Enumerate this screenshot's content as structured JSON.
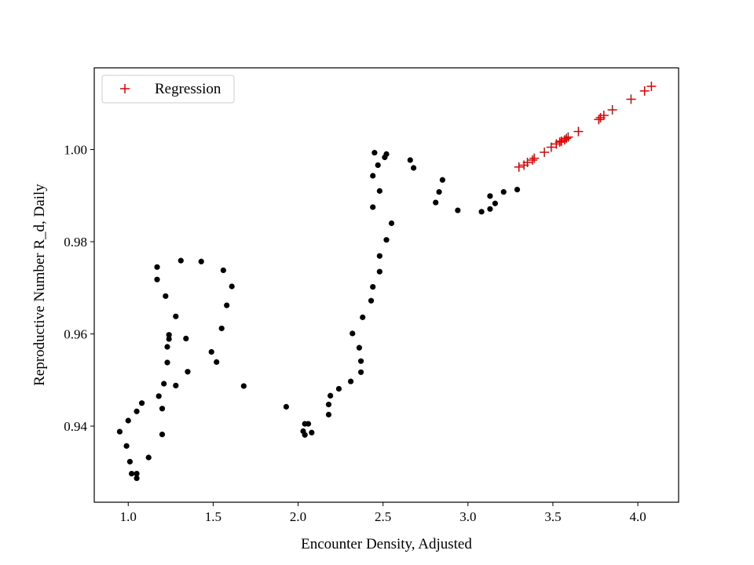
{
  "chart_data": {
    "type": "scatter",
    "title": "",
    "xlabel": "Encounter Density, Adjusted",
    "ylabel": "Reproductive Number R_d, Daily",
    "xlim": [
      0.8,
      4.24
    ],
    "ylim": [
      0.9235,
      1.0177
    ],
    "xticks": [
      1.0,
      1.5,
      2.0,
      2.5,
      3.0,
      3.5,
      4.0
    ],
    "xtick_labels": [
      "1.0",
      "1.5",
      "2.0",
      "2.5",
      "3.0",
      "3.5",
      "4.0"
    ],
    "yticks": [
      0.94,
      0.96,
      0.98,
      1.0
    ],
    "ytick_labels": [
      "0.94",
      "0.96",
      "0.98",
      "1.00"
    ],
    "grid": false,
    "legend": {
      "position": "top-left",
      "entries": [
        {
          "label": "Regression",
          "marker": "+",
          "color": "#e00000"
        }
      ]
    },
    "series": [
      {
        "marker": "dot",
        "color": "#000000",
        "points": [
          [
            0.95,
            0.9388
          ],
          [
            0.99,
            0.9357
          ],
          [
            1.01,
            0.9323
          ],
          [
            1.02,
            0.9297
          ],
          [
            1.05,
            0.9297
          ],
          [
            1.05,
            0.9287
          ],
          [
            1.0,
            0.9412
          ],
          [
            1.05,
            0.9432
          ],
          [
            1.08,
            0.945
          ],
          [
            1.12,
            0.9332
          ],
          [
            1.18,
            0.9465
          ],
          [
            1.2,
            0.9382
          ],
          [
            1.2,
            0.9438
          ],
          [
            1.21,
            0.9492
          ],
          [
            1.22,
            0.9682
          ],
          [
            1.17,
            0.9718
          ],
          [
            1.17,
            0.9745
          ],
          [
            1.23,
            0.9572
          ],
          [
            1.23,
            0.9538
          ],
          [
            1.24,
            0.9589
          ],
          [
            1.24,
            0.9598
          ],
          [
            1.28,
            0.9488
          ],
          [
            1.28,
            0.9638
          ],
          [
            1.31,
            0.9759
          ],
          [
            1.34,
            0.959
          ],
          [
            1.35,
            0.9518
          ],
          [
            1.43,
            0.9757
          ],
          [
            1.49,
            0.9561
          ],
          [
            1.52,
            0.9539
          ],
          [
            1.55,
            0.9612
          ],
          [
            1.56,
            0.9738
          ],
          [
            1.58,
            0.9662
          ],
          [
            1.61,
            0.9703
          ],
          [
            1.68,
            0.9487
          ],
          [
            1.93,
            0.9442
          ],
          [
            2.03,
            0.9389
          ],
          [
            2.04,
            0.9381
          ],
          [
            2.04,
            0.9405
          ],
          [
            2.06,
            0.9405
          ],
          [
            2.08,
            0.9386
          ],
          [
            2.18,
            0.9425
          ],
          [
            2.18,
            0.9447
          ],
          [
            2.19,
            0.9466
          ],
          [
            2.24,
            0.9481
          ],
          [
            2.31,
            0.9497
          ],
          [
            2.32,
            0.9601
          ],
          [
            2.36,
            0.957
          ],
          [
            2.37,
            0.9517
          ],
          [
            2.37,
            0.9541
          ],
          [
            2.38,
            0.9636
          ],
          [
            2.43,
            0.9672
          ],
          [
            2.44,
            0.9702
          ],
          [
            2.44,
            0.9875
          ],
          [
            2.44,
            0.9943
          ],
          [
            2.45,
            0.9993
          ],
          [
            2.47,
            0.9966
          ],
          [
            2.48,
            0.9735
          ],
          [
            2.48,
            0.9769
          ],
          [
            2.48,
            0.991
          ],
          [
            2.51,
            0.9983
          ],
          [
            2.52,
            0.999
          ],
          [
            2.52,
            0.9804
          ],
          [
            2.55,
            0.984
          ],
          [
            2.66,
            0.9977
          ],
          [
            2.68,
            0.996
          ],
          [
            2.81,
            0.9885
          ],
          [
            2.83,
            0.9908
          ],
          [
            2.85,
            0.9934
          ],
          [
            2.94,
            0.9868
          ],
          [
            3.08,
            0.9865
          ],
          [
            3.13,
            0.9871
          ],
          [
            3.13,
            0.9899
          ],
          [
            3.16,
            0.9883
          ],
          [
            3.21,
            0.9908
          ],
          [
            3.29,
            0.9913
          ]
        ]
      },
      {
        "name": "Regression",
        "marker": "+",
        "color": "#e00000",
        "points": [
          [
            3.3,
            0.9962
          ],
          [
            3.33,
            0.9966
          ],
          [
            3.35,
            0.9972
          ],
          [
            3.38,
            0.9977
          ],
          [
            3.39,
            0.9981
          ],
          [
            3.45,
            0.9994
          ],
          [
            3.49,
            1.0005
          ],
          [
            3.52,
            1.0012
          ],
          [
            3.54,
            1.0016
          ],
          [
            3.55,
            1.0018
          ],
          [
            3.57,
            1.0021
          ],
          [
            3.58,
            1.0024
          ],
          [
            3.59,
            1.0027
          ],
          [
            3.65,
            1.0039
          ],
          [
            3.77,
            1.0065
          ],
          [
            3.78,
            1.0069
          ],
          [
            3.8,
            1.0074
          ],
          [
            3.85,
            1.0086
          ],
          [
            3.96,
            1.0109
          ],
          [
            4.04,
            1.0127
          ],
          [
            4.08,
            1.0137
          ]
        ]
      }
    ]
  }
}
